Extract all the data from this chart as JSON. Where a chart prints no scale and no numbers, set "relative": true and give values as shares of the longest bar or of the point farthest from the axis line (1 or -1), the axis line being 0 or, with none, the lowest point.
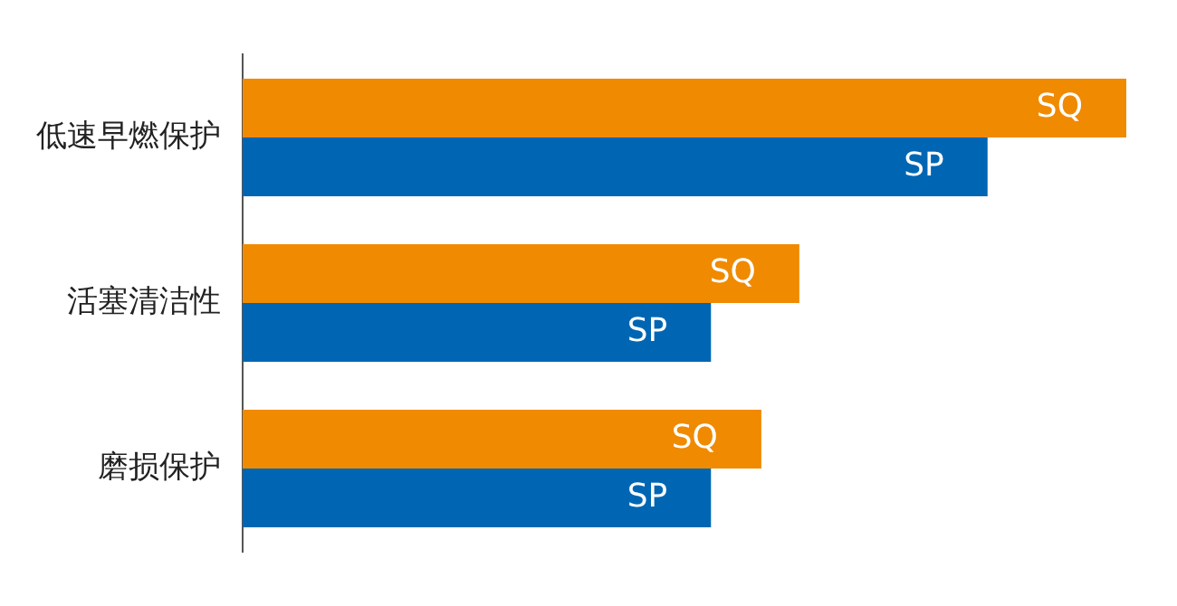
{
  "chart_data": {
    "type": "bar",
    "orientation": "horizontal",
    "relative": true,
    "legend": false,
    "categories": [
      "低速早燃保护",
      "活塞清洁性",
      "磨损保护"
    ],
    "series": [
      {
        "name": "SQ",
        "color": "#f08a00",
        "values": [
          1,
          0.63,
          0.587
        ]
      },
      {
        "name": "SP",
        "color": "#0066b3",
        "values": [
          0.843,
          0.53,
          0.53
        ]
      }
    ]
  }
}
